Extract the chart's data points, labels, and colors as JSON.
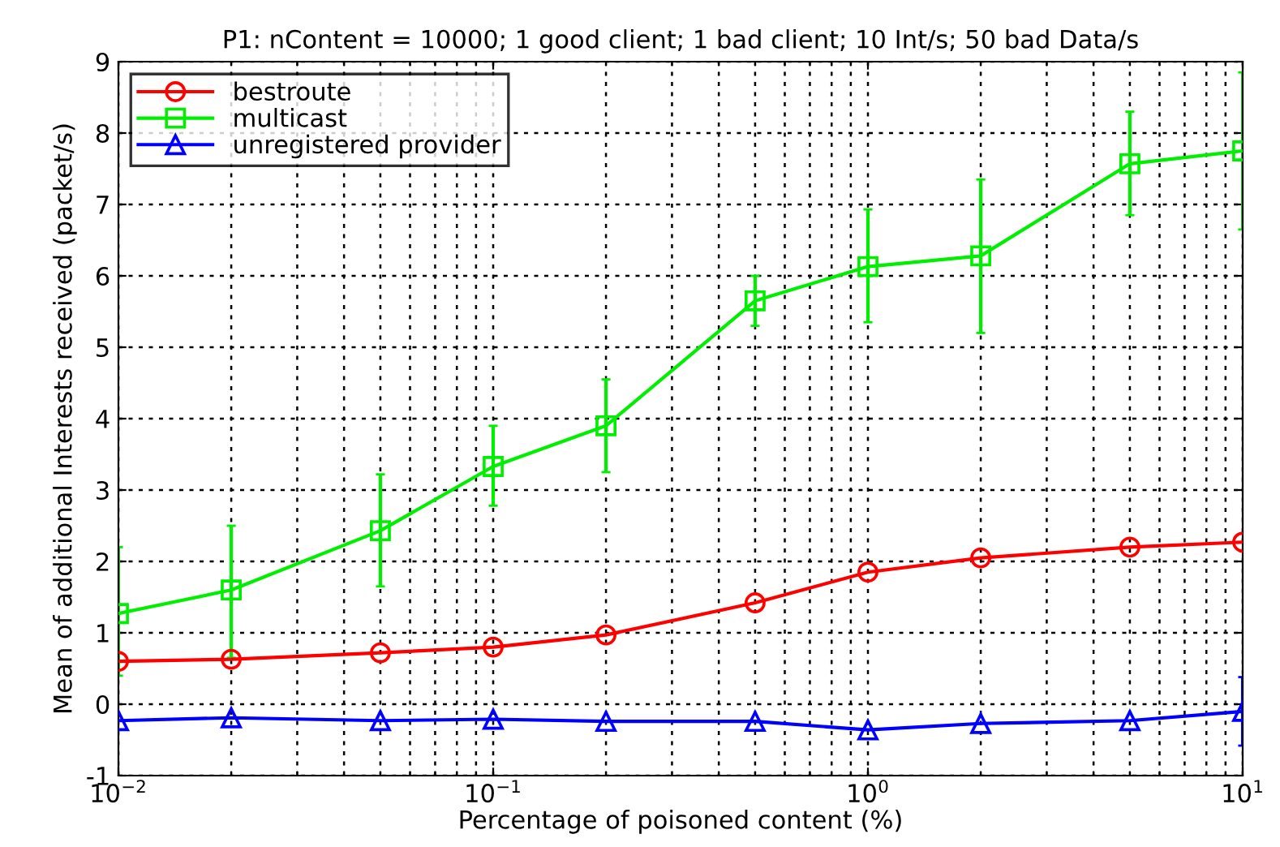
{
  "chart_data": {
    "type": "line",
    "title": "P1: nContent = 10000; 1 good client; 1 bad client; 10 Int/s; 50 bad Data/s",
    "xlabel": "Percentage of poisoned content (%)",
    "ylabel": "Mean of additional Interests received (packet/s)",
    "x": [
      0.01,
      0.02,
      0.05,
      0.1,
      0.2,
      0.5,
      1,
      2,
      5,
      10
    ],
    "series": [
      {
        "name": "bestroute",
        "color": "#ff0000",
        "marker": "circle",
        "values": [
          0.6,
          0.63,
          0.72,
          0.8,
          0.97,
          1.42,
          1.85,
          2.05,
          2.2,
          2.27
        ]
      },
      {
        "name": "multicast",
        "color": "#00ee00",
        "marker": "square",
        "values": [
          1.27,
          1.6,
          2.43,
          3.33,
          3.9,
          5.65,
          6.13,
          6.28,
          7.57,
          7.75
        ],
        "errors": [
          [
            0.4,
            2.2
          ],
          [
            0.65,
            2.5
          ],
          [
            1.65,
            3.22
          ],
          [
            2.78,
            3.9
          ],
          [
            3.25,
            4.55
          ],
          [
            5.3,
            6.0
          ],
          [
            5.35,
            6.93
          ],
          [
            5.2,
            7.35
          ],
          [
            6.85,
            8.3
          ],
          [
            6.65,
            8.85
          ]
        ]
      },
      {
        "name": "unregistered provider",
        "color": "#0000ff",
        "marker": "triangle",
        "values": [
          -0.23,
          -0.19,
          -0.23,
          -0.21,
          -0.24,
          -0.24,
          -0.36,
          -0.27,
          -0.23,
          -0.1
        ],
        "errors": [
          null,
          null,
          null,
          null,
          null,
          null,
          null,
          null,
          null,
          [
            -0.58,
            0.38
          ]
        ]
      }
    ],
    "log": "x",
    "xlim": [
      0.01,
      10
    ],
    "xticks": [
      {
        "value": 0.01,
        "label": "10$^{−2}$"
      },
      {
        "value": 0.1,
        "label": "10$^{−1}$"
      },
      {
        "value": 1,
        "label": "10$^{0}$"
      },
      {
        "value": 10,
        "label": "10$^{1}$"
      }
    ],
    "ylim": [
      -1,
      9
    ],
    "yticks": [
      -1,
      0,
      1,
      2,
      3,
      4,
      5,
      6,
      7,
      8,
      9
    ],
    "grid": true,
    "legend": "top left"
  }
}
